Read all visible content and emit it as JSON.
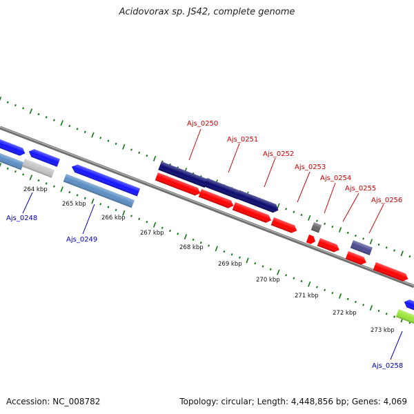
{
  "title": "Acidovorax sp. JS42, complete genome",
  "footer": {
    "accession": "Accession: NC_008782",
    "topology": "Topology: circular; Length: 4,448,856 bp; Genes: 4,069"
  },
  "scale_ticks": [
    "264 kbp",
    "265 kbp",
    "266 kbp",
    "267 kbp",
    "268 kbp",
    "269 kbp",
    "270 kbp",
    "271 kbp",
    "272 kbp",
    "273 kbp"
  ],
  "gene_labels": {
    "forward": [
      "Ajs_0250",
      "Ajs_0251",
      "Ajs_0252",
      "Ajs_0253",
      "Ajs_0254",
      "Ajs_0255",
      "Ajs_0256"
    ],
    "reverse": [
      "Ajs_0248",
      "Ajs_0249",
      "Ajs_0258"
    ]
  },
  "colors": {
    "forward_label": "#cc0000",
    "reverse_label": "#0000bb",
    "tick_marks": "#117711",
    "backbone": "#888888",
    "feature_red": "#ff0000",
    "feature_navy": "#0a0a6e",
    "feature_blue": "#1414ff",
    "feature_steel": "#5b8ec4",
    "feature_gray": "#c4c4c4",
    "feature_darkgray": "#666666",
    "feature_slate": "#4a4a90",
    "feature_lime": "#9ae63a"
  }
}
